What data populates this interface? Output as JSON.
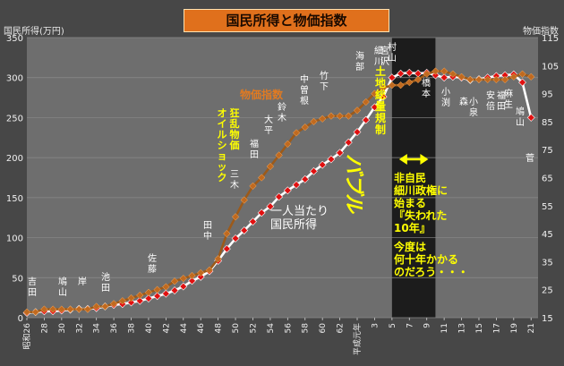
{
  "header": {
    "title": "国民所得と物価指数"
  },
  "chart_data": {
    "type": "line",
    "ylabel_left": "国民所得(万円)",
    "ylabel_right": "物価指数",
    "ylim_left": [
      0,
      350
    ],
    "ylim_right": [
      15,
      115
    ],
    "left_ticks": [
      "0",
      "50",
      "100",
      "150",
      "200",
      "250",
      "300",
      "350"
    ],
    "right_ticks": [
      "15",
      "25",
      "35",
      "45",
      "55",
      "65",
      "75",
      "85",
      "95",
      "105",
      "115"
    ],
    "x_tick_labels": [
      "昭和26",
      "28",
      "30",
      "32",
      "34",
      "36",
      "38",
      "40",
      "42",
      "44",
      "46",
      "48",
      "50",
      "52",
      "54",
      "56",
      "58",
      "60",
      "62",
      "平成元年",
      "3",
      "5",
      "7",
      "9",
      "11",
      "13",
      "15",
      "17",
      "19",
      "21"
    ],
    "shaded_years": [
      1993,
      1998
    ],
    "series": [
      {
        "name": "一人当たり国民所得",
        "axis": "left",
        "color": "#e01010",
        "x": [
          1951,
          1952,
          1953,
          1954,
          1955,
          1956,
          1957,
          1958,
          1959,
          1960,
          1961,
          1962,
          1963,
          1964,
          1965,
          1966,
          1967,
          1968,
          1969,
          1970,
          1971,
          1972,
          1973,
          1974,
          1975,
          1976,
          1977,
          1978,
          1979,
          1980,
          1981,
          1982,
          1983,
          1984,
          1985,
          1986,
          1987,
          1988,
          1989,
          1990,
          1991,
          1992,
          1993,
          1994,
          1995,
          1996,
          1997,
          1998,
          1999,
          2000,
          2001,
          2002,
          2003,
          2004,
          2005,
          2006,
          2007,
          2008,
          2009
        ],
        "y": [
          6,
          7,
          8,
          8,
          9,
          10,
          11,
          11,
          12,
          14,
          16,
          17,
          19,
          21,
          24,
          27,
          30,
          34,
          39,
          46,
          51,
          58,
          71,
          86,
          99,
          109,
          120,
          131,
          139,
          151,
          159,
          166,
          173,
          183,
          191,
          198,
          206,
          219,
          232,
          247,
          263,
          276,
          300,
          305,
          306,
          305,
          306,
          303,
          300,
          301,
          300,
          297,
          298,
          300,
          302,
          303,
          304,
          294,
          250
        ]
      },
      {
        "name": "物価指数",
        "axis": "right",
        "color": "#9c5a1a",
        "x": [
          1951,
          1952,
          1953,
          1954,
          1955,
          1956,
          1957,
          1958,
          1959,
          1960,
          1961,
          1962,
          1963,
          1964,
          1965,
          1966,
          1967,
          1968,
          1969,
          1970,
          1971,
          1972,
          1973,
          1974,
          1975,
          1976,
          1977,
          1978,
          1979,
          1980,
          1981,
          1982,
          1983,
          1984,
          1985,
          1986,
          1987,
          1988,
          1989,
          1990,
          1991,
          1992,
          1993,
          1994,
          1995,
          1996,
          1997,
          1998,
          1999,
          2000,
          2001,
          2002,
          2003,
          2004,
          2005,
          2006,
          2007,
          2008,
          2009
        ],
        "y": [
          17,
          17,
          18,
          18,
          18,
          18,
          18,
          18,
          19,
          19,
          20,
          21,
          22,
          23,
          24,
          25,
          26,
          28,
          29,
          30,
          31,
          32,
          36,
          45,
          51,
          57,
          62,
          65,
          69,
          73,
          77,
          81,
          83,
          85,
          86,
          87,
          87,
          87,
          89,
          92,
          95,
          97,
          98,
          98,
          99,
          100,
          102,
          103,
          103,
          102,
          101,
          100,
          100,
          100,
          100,
          100,
          101,
          102,
          101
        ]
      }
    ],
    "annotations": {
      "income_label": "一人当たり\n国民所得",
      "price_label": "物価指数",
      "bubble": "バブル",
      "oil_shock": "狂乱物価\nオイルショック",
      "land": "土地総量規制",
      "lost_decade": "非自民\n細川政権に\n始まる\n『失われた\n10年』",
      "next_decade": "今度は\n何十年かかる\nのだろう・・・",
      "pm_names": [
        "吉田",
        "鳩山",
        "岸",
        "池田",
        "佐藤",
        "田中",
        "三木",
        "福田",
        "大平",
        "鈴木",
        "中曽根",
        "竹下",
        "海部",
        "宮沢",
        "細川",
        "村山",
        "橋本",
        "小渕",
        "森",
        "小泉",
        "安倍",
        "福田",
        "麻生",
        "鳩山",
        "菅"
      ]
    }
  }
}
